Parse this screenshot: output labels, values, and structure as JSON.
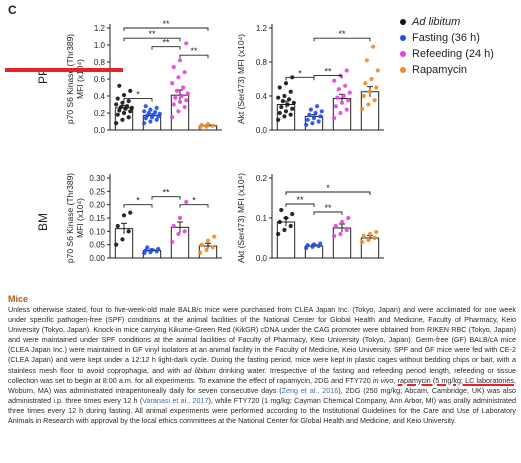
{
  "panel_letter": "C",
  "colors": {
    "ad_libitum": "#111111",
    "fasting": "#1f4de8",
    "refeeding": "#e83fe0",
    "rapamycin": "#f58a1f",
    "highlight": "#e8212a"
  },
  "legend": [
    {
      "label": "Ad libitum",
      "color": "#111111",
      "italic": true
    },
    {
      "label": "Fasting (36 h)",
      "color": "#1f4de8",
      "italic": false
    },
    {
      "label": "Refeeding (24 h)",
      "color": "#e83fe0",
      "italic": false
    },
    {
      "label": "Rapamycin",
      "color": "#f58a1f",
      "italic": false
    }
  ],
  "row_labels": {
    "pp": "PP",
    "bm": "BM"
  },
  "chart_data": [
    {
      "type": "scatter",
      "row": "PP",
      "column": 1,
      "ylabel_main": "p70 S6 Kinase (Thr389)",
      "ylabel_sub": "MFI (x10⁴)",
      "ylim": [
        0,
        1.2
      ],
      "ytick_labels": [
        "0.0",
        "0.2",
        "0.4",
        "0.6",
        "0.8",
        "1.0",
        "1.2"
      ],
      "ytick_values": [
        0,
        0.2,
        0.4,
        0.6,
        0.8,
        1.0,
        1.2
      ],
      "series": [
        {
          "group": "ad_libitum",
          "mean": 0.26,
          "sem": 0.03,
          "points": [
            0.08,
            0.12,
            0.15,
            0.18,
            0.2,
            0.22,
            0.23,
            0.25,
            0.26,
            0.27,
            0.28,
            0.3,
            0.32,
            0.34,
            0.37,
            0.41,
            0.46,
            0.52
          ]
        },
        {
          "group": "fasting",
          "mean": 0.17,
          "sem": 0.02,
          "points": [
            0.08,
            0.1,
            0.12,
            0.14,
            0.15,
            0.16,
            0.17,
            0.18,
            0.19,
            0.2,
            0.21,
            0.22,
            0.24,
            0.26,
            0.28
          ]
        },
        {
          "group": "refeeding",
          "mean": 0.41,
          "sem": 0.06,
          "points": [
            0.15,
            0.22,
            0.27,
            0.3,
            0.33,
            0.35,
            0.38,
            0.4,
            0.43,
            0.46,
            0.5,
            0.55,
            0.62,
            0.68,
            0.74,
            0.82,
            1.02
          ]
        },
        {
          "group": "rapamycin",
          "mean": 0.05,
          "sem": 0.01,
          "points": [
            0.03,
            0.04,
            0.05,
            0.06,
            0.07
          ]
        }
      ],
      "brackets": [
        {
          "from": 1,
          "to": 2,
          "level": 0.37,
          "label": "*"
        },
        {
          "from": 3,
          "to": 4,
          "level": 0.88,
          "label": "**"
        },
        {
          "from": 2,
          "to": 3,
          "level": 0.98,
          "label": "**"
        },
        {
          "from": 1,
          "to": 3,
          "level": 1.08,
          "label": "**"
        },
        {
          "from": 1,
          "to": 4,
          "level": 1.2,
          "label": "**"
        }
      ]
    },
    {
      "type": "scatter",
      "row": "PP",
      "column": 2,
      "ylabel_main": "Akt (Ser473) MFI (x10⁴)",
      "ylabel_sub": "",
      "ylim": [
        0,
        1.2
      ],
      "ytick_labels": [
        "0.0",
        "0.4",
        "0.8",
        "1.2"
      ],
      "ytick_values": [
        0,
        0.4,
        0.8,
        1.2
      ],
      "series": [
        {
          "group": "ad_libitum",
          "mean": 0.3,
          "sem": 0.04,
          "points": [
            0.12,
            0.16,
            0.18,
            0.2,
            0.22,
            0.25,
            0.27,
            0.3,
            0.32,
            0.34,
            0.36,
            0.38,
            0.4,
            0.45,
            0.5,
            0.55,
            0.62
          ]
        },
        {
          "group": "fasting",
          "mean": 0.16,
          "sem": 0.02,
          "points": [
            0.06,
            0.08,
            0.1,
            0.12,
            0.14,
            0.16,
            0.18,
            0.2,
            0.22,
            0.24,
            0.28
          ]
        },
        {
          "group": "refeeding",
          "mean": 0.37,
          "sem": 0.05,
          "points": [
            0.14,
            0.2,
            0.24,
            0.28,
            0.32,
            0.35,
            0.38,
            0.4,
            0.44,
            0.48,
            0.52,
            0.58,
            0.64,
            0.7
          ]
        },
        {
          "group": "rapamycin",
          "mean": 0.45,
          "sem": 0.06,
          "points": [
            0.25,
            0.3,
            0.35,
            0.4,
            0.45,
            0.5,
            0.55,
            0.6,
            0.7,
            0.82,
            0.98
          ]
        }
      ],
      "brackets": [
        {
          "from": 1,
          "to": 2,
          "level": 0.62,
          "label": "*"
        },
        {
          "from": 2,
          "to": 3,
          "level": 0.64,
          "label": "**"
        },
        {
          "from": 2,
          "to": 4,
          "level": 1.08,
          "label": "**"
        }
      ]
    },
    {
      "type": "scatter",
      "row": "BM",
      "column": 1,
      "ylabel_main": "p70 S6 Kinase (Thr389)",
      "ylabel_sub": "MFI (x10⁴)",
      "ylim": [
        0,
        0.3
      ],
      "ytick_labels": [
        "0.00",
        "0.05",
        "0.10",
        "0.15",
        "0.20",
        "0.25",
        "0.30"
      ],
      "ytick_values": [
        0,
        0.05,
        0.1,
        0.15,
        0.2,
        0.25,
        0.3
      ],
      "series": [
        {
          "group": "ad_libitum",
          "mean": 0.11,
          "sem": 0.02,
          "points": [
            0.05,
            0.07,
            0.1,
            0.12,
            0.16,
            0.17
          ]
        },
        {
          "group": "fasting",
          "mean": 0.028,
          "sem": 0.005,
          "points": [
            0.018,
            0.022,
            0.025,
            0.028,
            0.03,
            0.034,
            0.04
          ]
        },
        {
          "group": "refeeding",
          "mean": 0.115,
          "sem": 0.02,
          "points": [
            0.06,
            0.09,
            0.1,
            0.12,
            0.15,
            0.21
          ]
        },
        {
          "group": "rapamycin",
          "mean": 0.045,
          "sem": 0.01,
          "points": [
            0.02,
            0.03,
            0.04,
            0.05,
            0.065,
            0.08
          ]
        }
      ],
      "brackets": [
        {
          "from": 1,
          "to": 2,
          "level": 0.2,
          "label": "*"
        },
        {
          "from": 2,
          "to": 3,
          "level": 0.23,
          "label": "**"
        },
        {
          "from": 3,
          "to": 4,
          "level": 0.2,
          "label": "*"
        }
      ]
    },
    {
      "type": "scatter",
      "row": "BM",
      "column": 2,
      "ylabel_main": "Akt (Ser473) MFI (x10⁴)",
      "ylabel_sub": "",
      "ylim": [
        0,
        0.2
      ],
      "ytick_labels": [
        "0.0",
        "0.1",
        "0.2"
      ],
      "ytick_values": [
        0,
        0.1,
        0.2
      ],
      "series": [
        {
          "group": "ad_libitum",
          "mean": 0.09,
          "sem": 0.01,
          "points": [
            0.06,
            0.07,
            0.08,
            0.09,
            0.1,
            0.11,
            0.12
          ]
        },
        {
          "group": "fasting",
          "mean": 0.03,
          "sem": 0.003,
          "points": [
            0.025,
            0.028,
            0.03,
            0.032,
            0.034,
            0.036
          ]
        },
        {
          "group": "refeeding",
          "mean": 0.075,
          "sem": 0.01,
          "points": [
            0.055,
            0.06,
            0.07,
            0.08,
            0.09,
            0.1
          ]
        },
        {
          "group": "rapamycin",
          "mean": 0.05,
          "sem": 0.006,
          "points": [
            0.04,
            0.045,
            0.05,
            0.055,
            0.06,
            0.065
          ]
        }
      ],
      "brackets": [
        {
          "from": 1,
          "to": 2,
          "level": 0.135,
          "label": "**"
        },
        {
          "from": 2,
          "to": 3,
          "level": 0.115,
          "label": "**"
        },
        {
          "from": 1,
          "to": 4,
          "level": 0.165,
          "label": "*"
        }
      ]
    }
  ],
  "methods": {
    "heading": "Mice",
    "segments": [
      {
        "t": "Unless otherwise stated, four to five-week-old male BALB/c mice were purchased from CLEA Japan Inc. (Tokyo, Japan) and were acclimated for one week under specific pathogen-free (SPF) conditions at the animal facilities of the National Center for Global Health and Medicine, Faculty of Pharmacy, Keio University (Tokyo, Japan). Knock-in mice carrying Kikume-Green Red (KikGR) cDNA under the CAG promoter were obtained from RIKEN RBC (Tokyo, Japan) and were maintained under SPF conditions at the animal facilities of Faculty of Pharmacy, Keio University (Tokyo, Japan). Germ-free (GF) BALB/cA mice (CLEA Japan Inc.) were maintained in GF vinyl isolators at an animal facility in the Faculty of Medicine, Keio University. SPF and GF mice were fed with CE-2 (CLEA Japan) and were kept under a 12:12 h light-dark cycle. During the fasting period, mice were kept in plastic cages without bedding chips or bait, with a stainless mesh floor to avoid coprophagia, and with ",
        "s": ""
      },
      {
        "t": "ad libitum",
        "s": "italic"
      },
      {
        "t": " drinking water. Irrespective of the fasting and refeeding period length, refeeding or tissue collection was set to begin at 8:00 a.m. for all experiments. To examine the effect of rapamycin, 2DG and FTY720 ",
        "s": ""
      },
      {
        "t": "in vivo",
        "s": "italic"
      },
      {
        "t": ", ",
        "s": ""
      },
      {
        "t": "rapamycin (5 mg/kg; LC laboratories",
        "s": "mark"
      },
      {
        "t": ", Woburn, MA) was administrated intraperitoneally daily for seven consecutive days (",
        "s": ""
      },
      {
        "t": "Zeng et al., 2016",
        "s": "ref"
      },
      {
        "t": "), 2DG (250 mg/kg; Abcam, Cambridge, UK) was also administrated i.p. three times every 12 h (",
        "s": ""
      },
      {
        "t": "Varanasi et al., 2017",
        "s": "ref"
      },
      {
        "t": "), while FTY720 (1 mg/kg; Cayman Chemical Company, Ann Arbor, MI) was orally administrated three times every 12 h during fasting. All animal experiments were performed according to the Institutional Guidelines for the Care and Use of Laboratory Animals in Research with approval by the local ethics committees at the National Center for Global Health and Medicine, and Keio University.",
        "s": ""
      }
    ]
  }
}
